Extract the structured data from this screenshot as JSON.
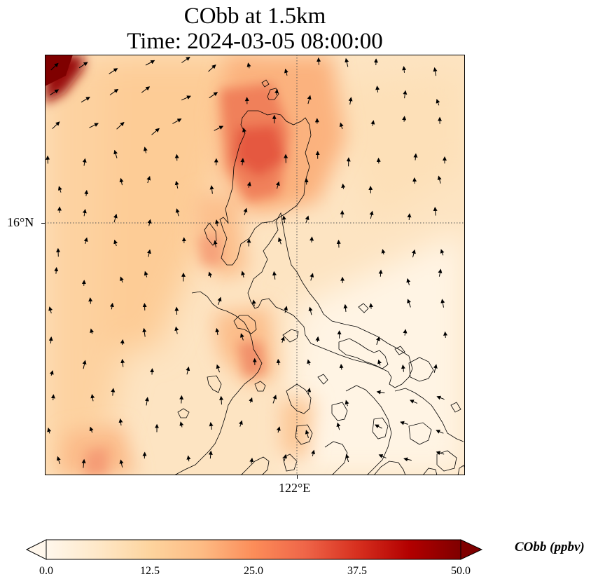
{
  "title": {
    "line1": "CObb at 1.5km",
    "line2": "Time: 2024-03-05 08:00:00"
  },
  "axes": {
    "lat_label": "16°N",
    "lon_label": "122°E"
  },
  "colorbar": {
    "label": "CObb (ppbv)",
    "ticks": [
      "0.0",
      "12.5",
      "25.0",
      "37.5",
      "50.0"
    ],
    "min": 0,
    "max": 50,
    "extend": "both",
    "colormap": "OrRd",
    "colors": [
      "#fff7ec",
      "#fee8c8",
      "#fdd49e",
      "#fdbb84",
      "#fc8d59",
      "#ef6548",
      "#d7301f",
      "#b30000",
      "#7f0000"
    ]
  },
  "map": {
    "gridlines": "dotted",
    "field": "CObb",
    "wind_vectors": true
  }
}
